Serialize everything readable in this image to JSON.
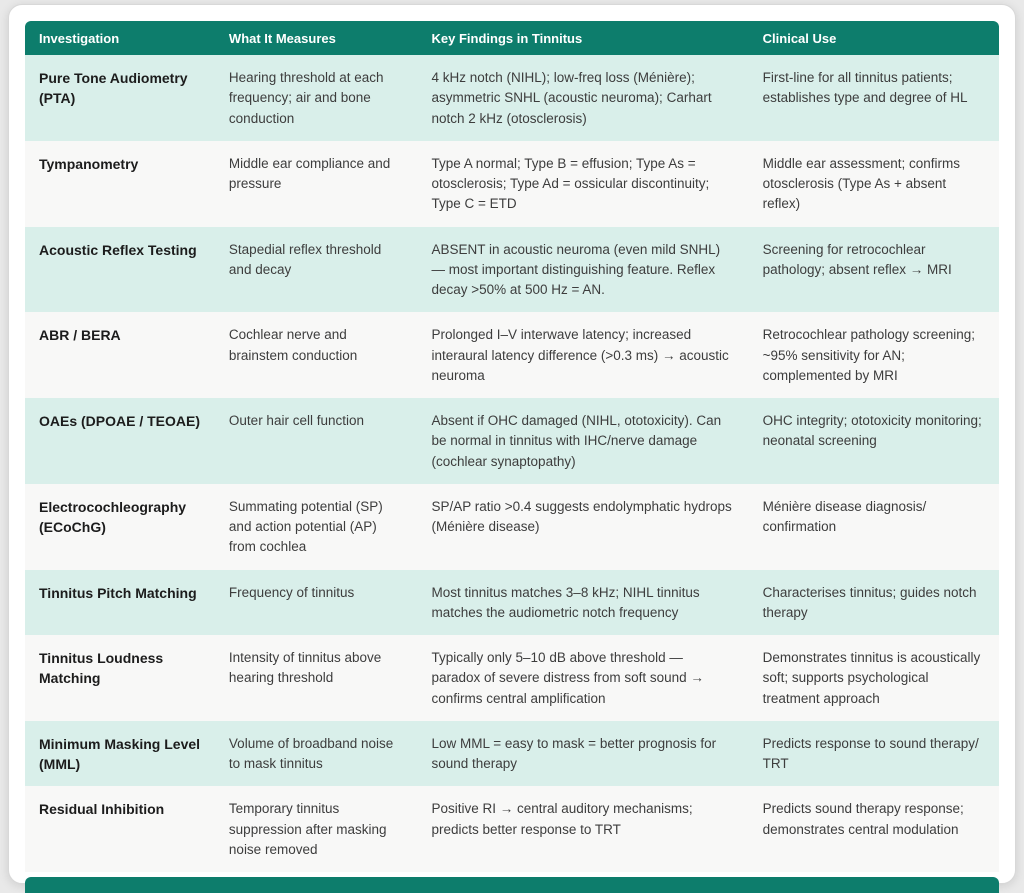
{
  "table": {
    "columns": [
      "Investigation",
      "What It Measures",
      "Key Findings in Tinnitus",
      "Clinical Use"
    ],
    "rows": [
      {
        "investigation": "Pure Tone Audiometry (PTA)",
        "measures": "Hearing threshold at each frequency; air and bone conduction",
        "findings": "4 kHz notch (NIHL); low-freq loss (Ménière); asymmetric SNHL (acoustic neuroma); Carhart notch 2 kHz (otosclerosis)",
        "clinical": "First-line for all tinnitus patients; establishes type and degree of HL"
      },
      {
        "investigation": "Tympanometry",
        "measures": "Middle ear compliance and pressure",
        "findings": "Type A normal; Type B = effusion; Type As = otosclerosis; Type Ad = ossicular discontinuity; Type C = ETD",
        "clinical": "Middle ear assessment; confirms otosclerosis (Type As + absent reflex)"
      },
      {
        "investigation": "Acoustic Reflex Testing",
        "measures": "Stapedial reflex threshold and decay",
        "findings": "ABSENT in acoustic neuroma (even mild SNHL) — most important distinguishing feature. Reflex decay >50% at 500 Hz = AN.",
        "clinical": "Screening for retrocochlear pathology; absent reflex → MRI"
      },
      {
        "investigation": "ABR / BERA",
        "measures": "Cochlear nerve and brainstem conduction",
        "findings": "Prolonged I–V interwave latency; increased interaural latency difference (>0.3 ms) → acoustic neuroma",
        "clinical": "Retrocochlear pathology screening; ~95% sensitivity for AN; complemented by MRI"
      },
      {
        "investigation": "OAEs (DPOAE / TEOAE)",
        "measures": "Outer hair cell function",
        "findings": "Absent if OHC damaged (NIHL, ototoxicity). Can be normal in tinnitus with IHC/nerve damage (cochlear synaptopathy)",
        "clinical": "OHC integrity; ototoxicity monitoring; neonatal screening"
      },
      {
        "investigation": "Electrocochleography (ECoChG)",
        "measures": "Summating potential (SP) and action potential (AP) from cochlea",
        "findings": "SP/AP ratio >0.4 suggests endolymphatic hydrops (Ménière disease)",
        "clinical": "Ménière disease diagnosis/ confirmation"
      },
      {
        "investigation": "Tinnitus Pitch Matching",
        "measures": "Frequency of tinnitus",
        "findings": "Most tinnitus matches 3–8 kHz; NIHL tinnitus matches the audiometric notch frequency",
        "clinical": "Characterises tinnitus; guides notch therapy"
      },
      {
        "investigation": "Tinnitus Loudness Matching",
        "measures": "Intensity of tinnitus above hearing threshold",
        "findings": "Typically only 5–10 dB above threshold — paradox of severe distress from soft sound → confirms central amplification",
        "clinical": "Demonstrates tinnitus is acoustically soft; supports psychological treatment approach"
      },
      {
        "investigation": "Minimum Masking Level (MML)",
        "measures": "Volume of broadband noise to mask tinnitus",
        "findings": "Low MML = easy to mask = better prognosis for sound therapy",
        "clinical": "Predicts response to sound therapy/ TRT"
      },
      {
        "investigation": "Residual Inhibition",
        "measures": "Temporary tinnitus suppression after masking noise removed",
        "findings": "Positive RI → central auditory mechanisms; predicts better response to TRT",
        "clinical": "Predicts sound therapy response; demonstrates central modulation"
      }
    ]
  },
  "colors": {
    "header_teal": "#0d7d6c",
    "row_mint": "#d9efea",
    "row_light": "#f8f8f7",
    "page_bg": "#e9e9e9",
    "body_text": "#3d3d3d",
    "bold_text": "#1c1c1c"
  }
}
